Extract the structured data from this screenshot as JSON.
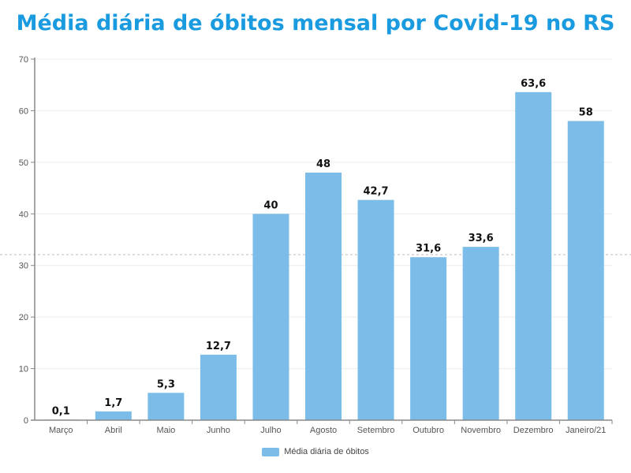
{
  "chart_data": {
    "type": "bar",
    "title": "Média diária de óbitos mensal por Covid-19 no RS",
    "categories": [
      "Março",
      "Abril",
      "Maio",
      "Junho",
      "Julho",
      "Agosto",
      "Setembro",
      "Outubro",
      "Novembro",
      "Dezembro",
      "Janeiro/21"
    ],
    "series": [
      {
        "name": "Média diária de óbitos",
        "values": [
          0.1,
          1.7,
          5.3,
          12.7,
          40,
          48,
          42.7,
          31.6,
          33.6,
          63.6,
          58
        ],
        "labels": [
          "0,1",
          "1,7",
          "5,3",
          "12,7",
          "40",
          "48",
          "42,7",
          "31,6",
          "33,6",
          "63,6",
          "58"
        ]
      }
    ],
    "ylim": [
      0,
      70
    ],
    "yticks": [
      0,
      10,
      20,
      30,
      40,
      50,
      60,
      70
    ],
    "grid": true,
    "legend": "bottom",
    "colors": {
      "bar": "#7bbde8",
      "title": "#1a9be0"
    }
  }
}
